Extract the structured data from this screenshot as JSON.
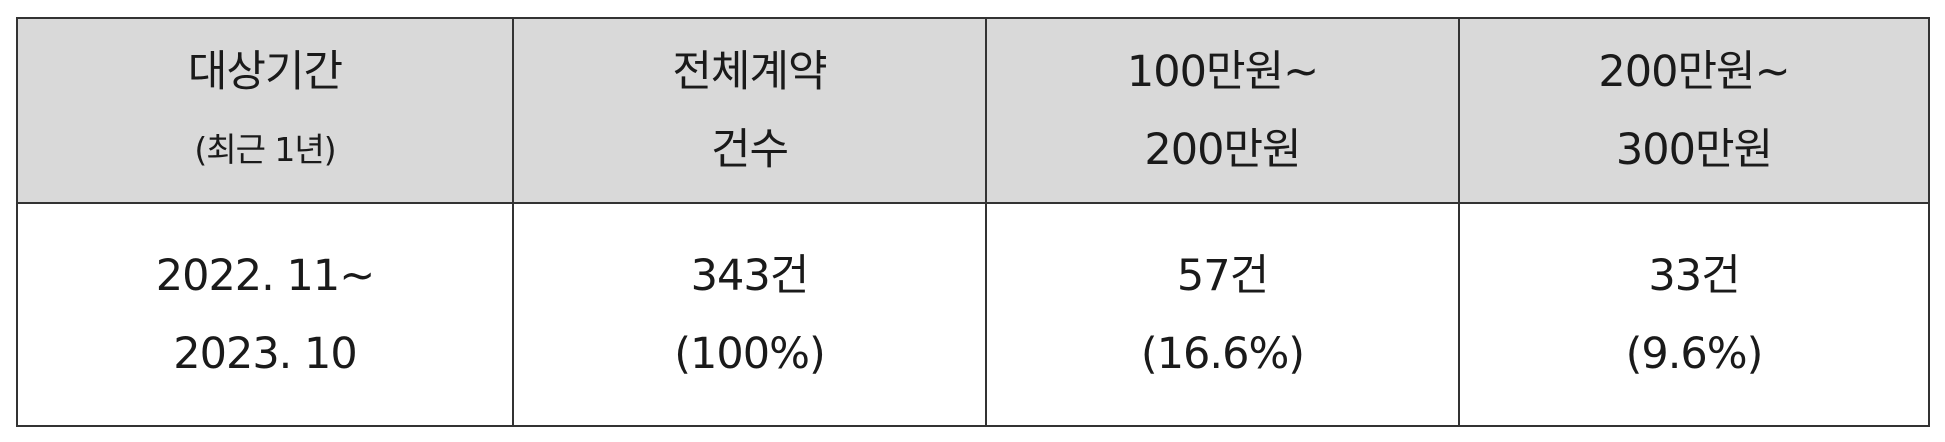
{
  "table": {
    "header": [
      {
        "line1": "대상기간",
        "line2": "(최근 1년)"
      },
      {
        "line1": "전체계약",
        "line2": "건수"
      },
      {
        "line1": "100만원~",
        "line2": "200만원"
      },
      {
        "line1": "200만원~",
        "line2": "300만원"
      }
    ],
    "row": [
      {
        "line1": "2022. 11~",
        "line2": "2023. 10"
      },
      {
        "line1": "343건",
        "line2": "(100%)"
      },
      {
        "line1": "57건",
        "line2": "(16.6%)"
      },
      {
        "line1": "33건",
        "line2": "(9.6%)"
      }
    ]
  }
}
